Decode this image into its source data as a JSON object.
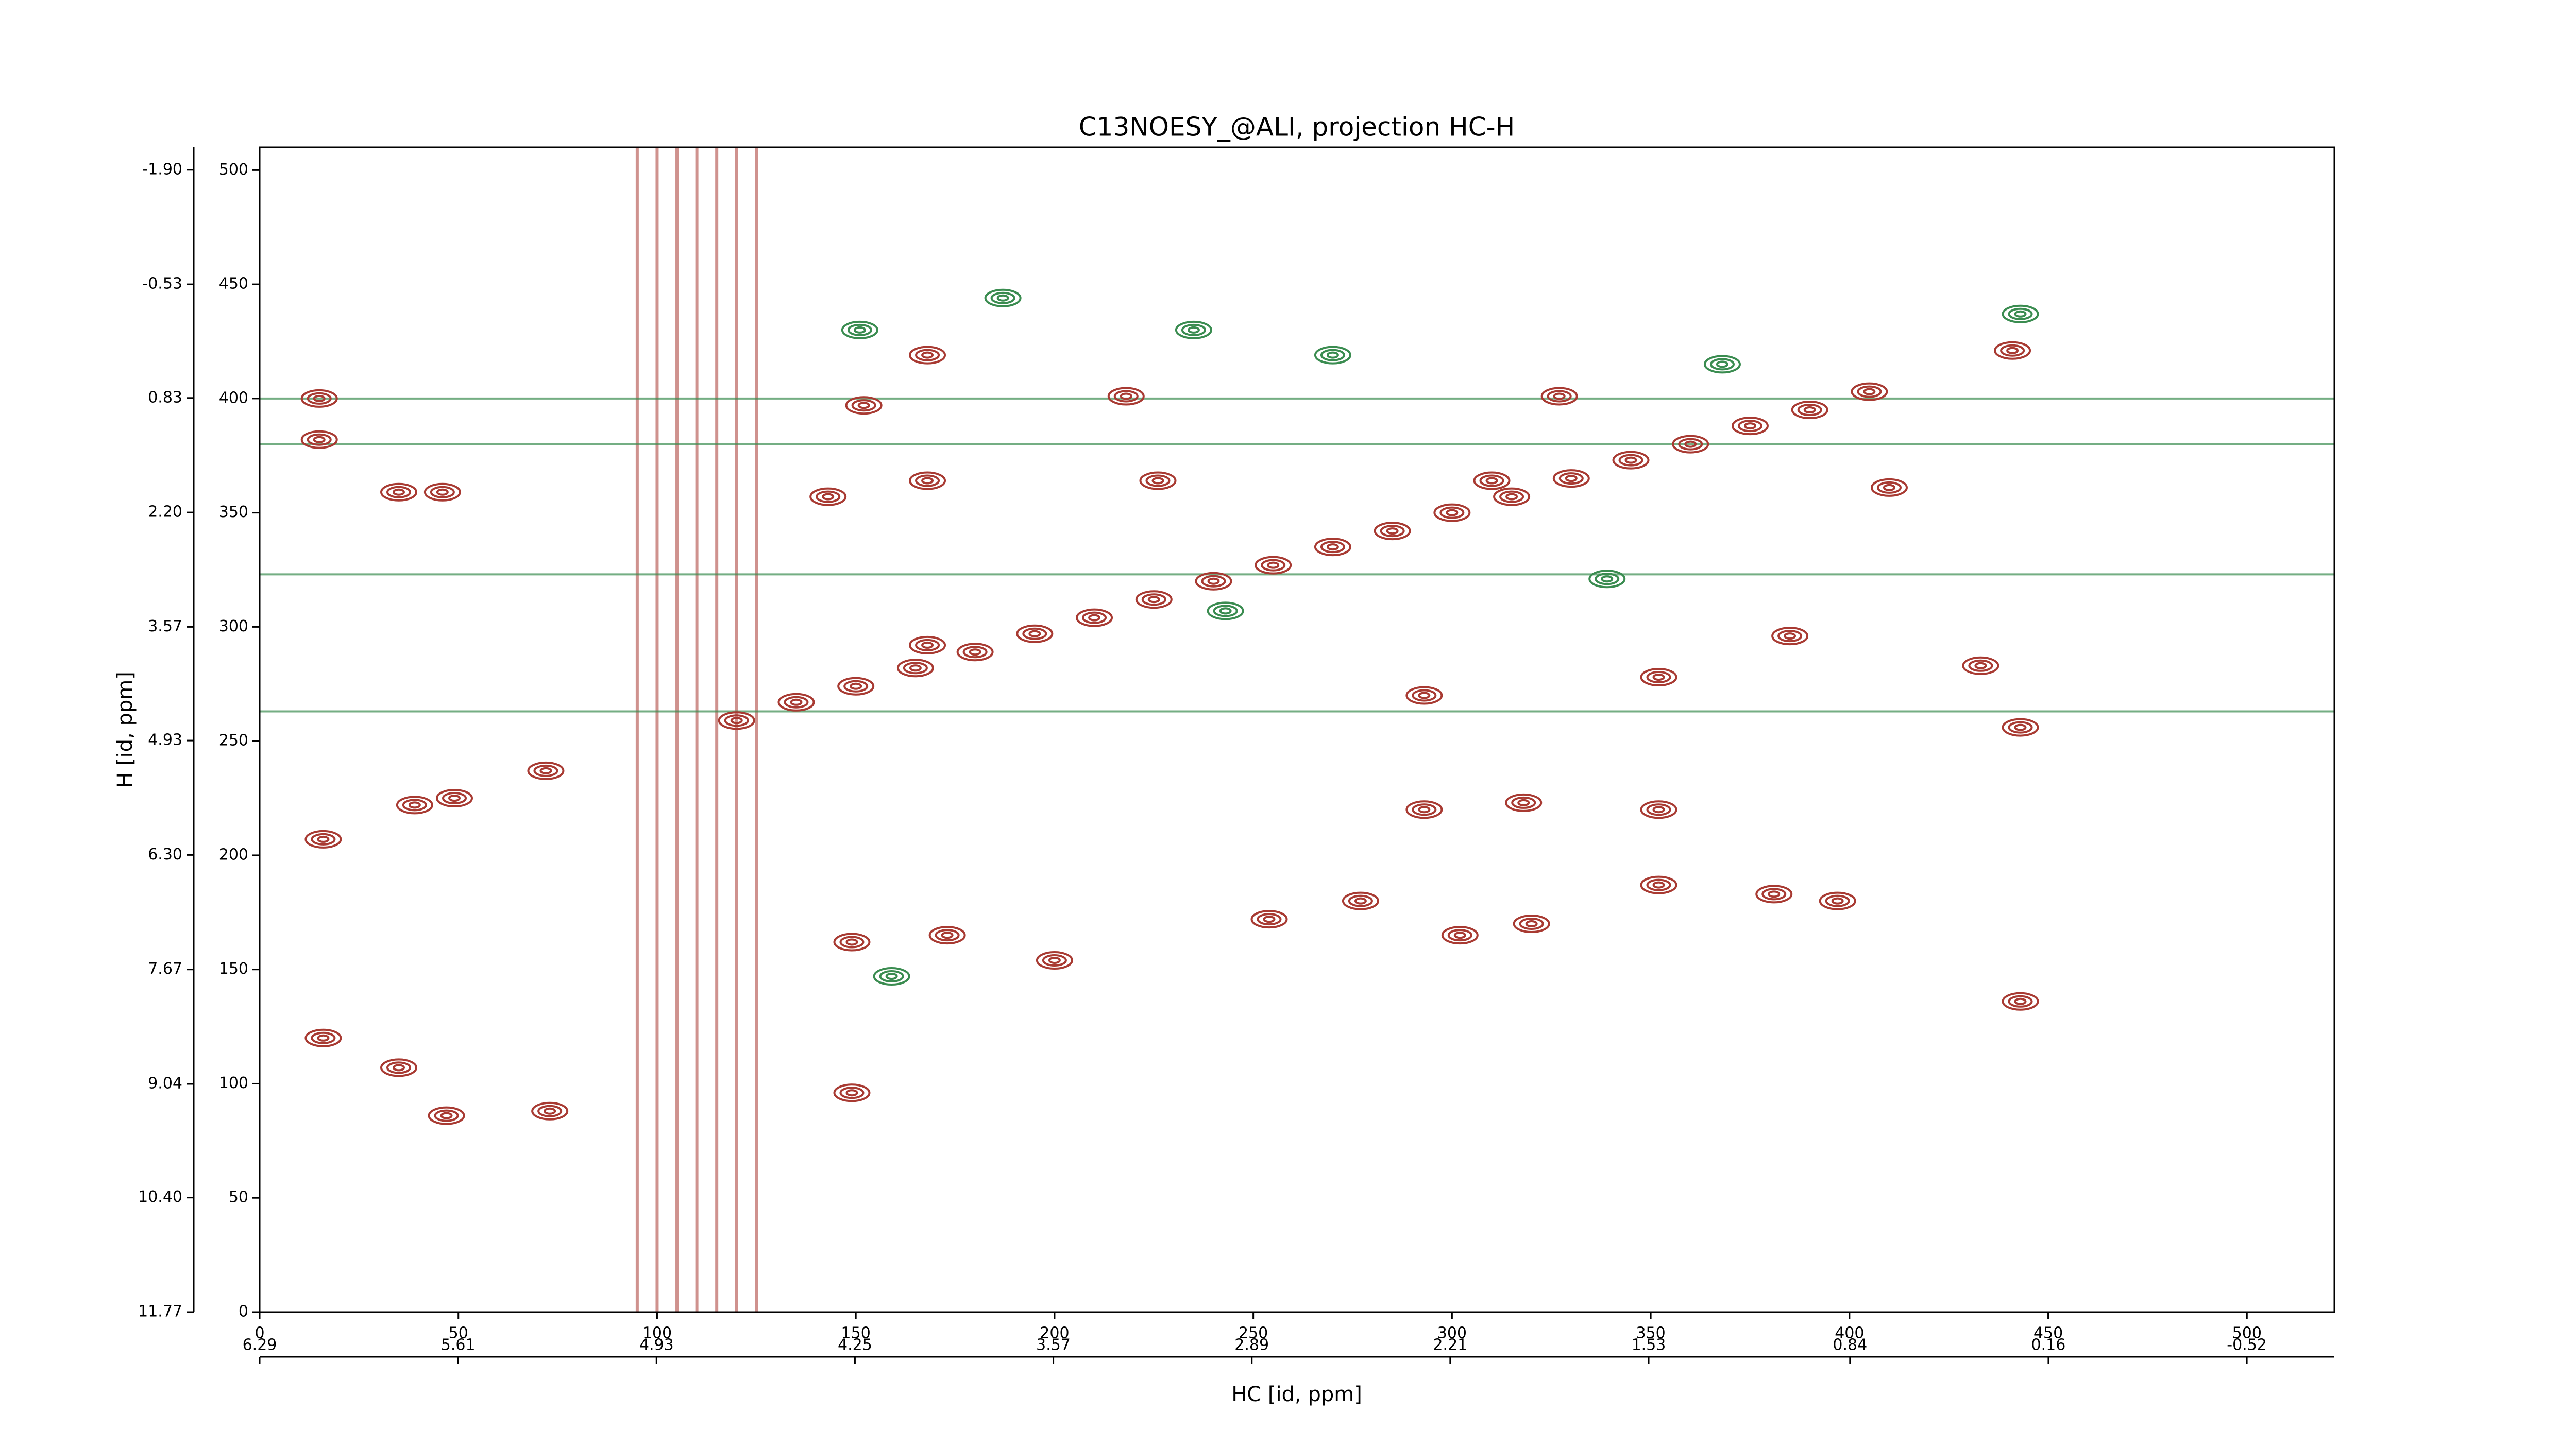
{
  "chart_data": {
    "type": "contour",
    "title": "C13NOESY_@ALI, projection HC-H",
    "x_label": "HC [id, ppm]",
    "y_label": "H [id, ppm]",
    "xlim": [
      0,
      522
    ],
    "ylim": [
      0,
      510
    ],
    "xticks": [
      0,
      50,
      100,
      150,
      200,
      250,
      300,
      350,
      400,
      450,
      500
    ],
    "yticks": [
      0,
      50,
      100,
      150,
      200,
      250,
      300,
      350,
      400,
      450,
      500
    ],
    "x2lim": [
      6.29,
      -0.82
    ],
    "x2ticks": [
      6.29,
      5.61,
      4.93,
      4.25,
      3.57,
      2.89,
      2.21,
      1.53,
      0.84,
      0.16,
      {
        "value": -0.52,
        "label": "-0.52"
      }
    ],
    "y2lim": [
      11.77,
      -2.17
    ],
    "y2ticks": [
      11.77,
      {
        "value": 10.4,
        "label": "10.40"
      },
      9.04,
      7.67,
      {
        "value": 6.3,
        "label": "6.30"
      },
      4.93,
      3.57,
      {
        "value": 2.2,
        "label": "2.20"
      },
      0.83,
      {
        "value": -0.53,
        "label": "-0.53"
      },
      {
        "value": -1.9,
        "label": "-1.90"
      }
    ],
    "series": [
      {
        "color": "#a83a32",
        "x": [
          120,
          135,
          150,
          165,
          180,
          195,
          210,
          225,
          240,
          255,
          270,
          285,
          300,
          315,
          330,
          345,
          360,
          375,
          390,
          405,
          15,
          15,
          35,
          46,
          16,
          39,
          49,
          72,
          16,
          35,
          47,
          73,
          149,
          149,
          173,
          200,
          254,
          277,
          302,
          320,
          352,
          381,
          397,
          443,
          443,
          433,
          168,
          293,
          352,
          385,
          143,
          168,
          226,
          310,
          410,
          152,
          218,
          327,
          441,
          168,
          352,
          293,
          318
        ],
        "y": [
          259,
          267,
          274,
          282,
          289,
          297,
          304,
          312,
          320,
          327,
          335,
          342,
          350,
          357,
          365,
          373,
          380,
          388,
          395,
          403,
          400,
          382,
          359,
          359,
          207,
          222,
          225,
          237,
          120,
          107,
          86,
          88,
          96,
          162,
          165,
          154,
          172,
          180,
          165,
          170,
          187,
          183,
          180,
          256,
          136,
          283,
          292,
          270,
          278,
          296,
          357,
          364,
          364,
          364,
          361,
          397,
          401,
          401,
          421,
          419,
          220,
          220,
          223
        ]
      },
      {
        "color": "#3a8c50",
        "x": [
          151,
          187,
          235,
          270,
          368,
          443,
          339,
          243,
          159
        ],
        "y": [
          430,
          444,
          430,
          419,
          415,
          437,
          321,
          307,
          147
        ]
      }
    ],
    "h_ridges": {
      "color": "#3a8c50",
      "y": [
        400,
        380,
        323,
        263
      ]
    },
    "v_ridges": {
      "color": "#a83a32",
      "x": [
        95,
        100,
        105,
        110,
        115,
        120,
        125
      ]
    }
  }
}
